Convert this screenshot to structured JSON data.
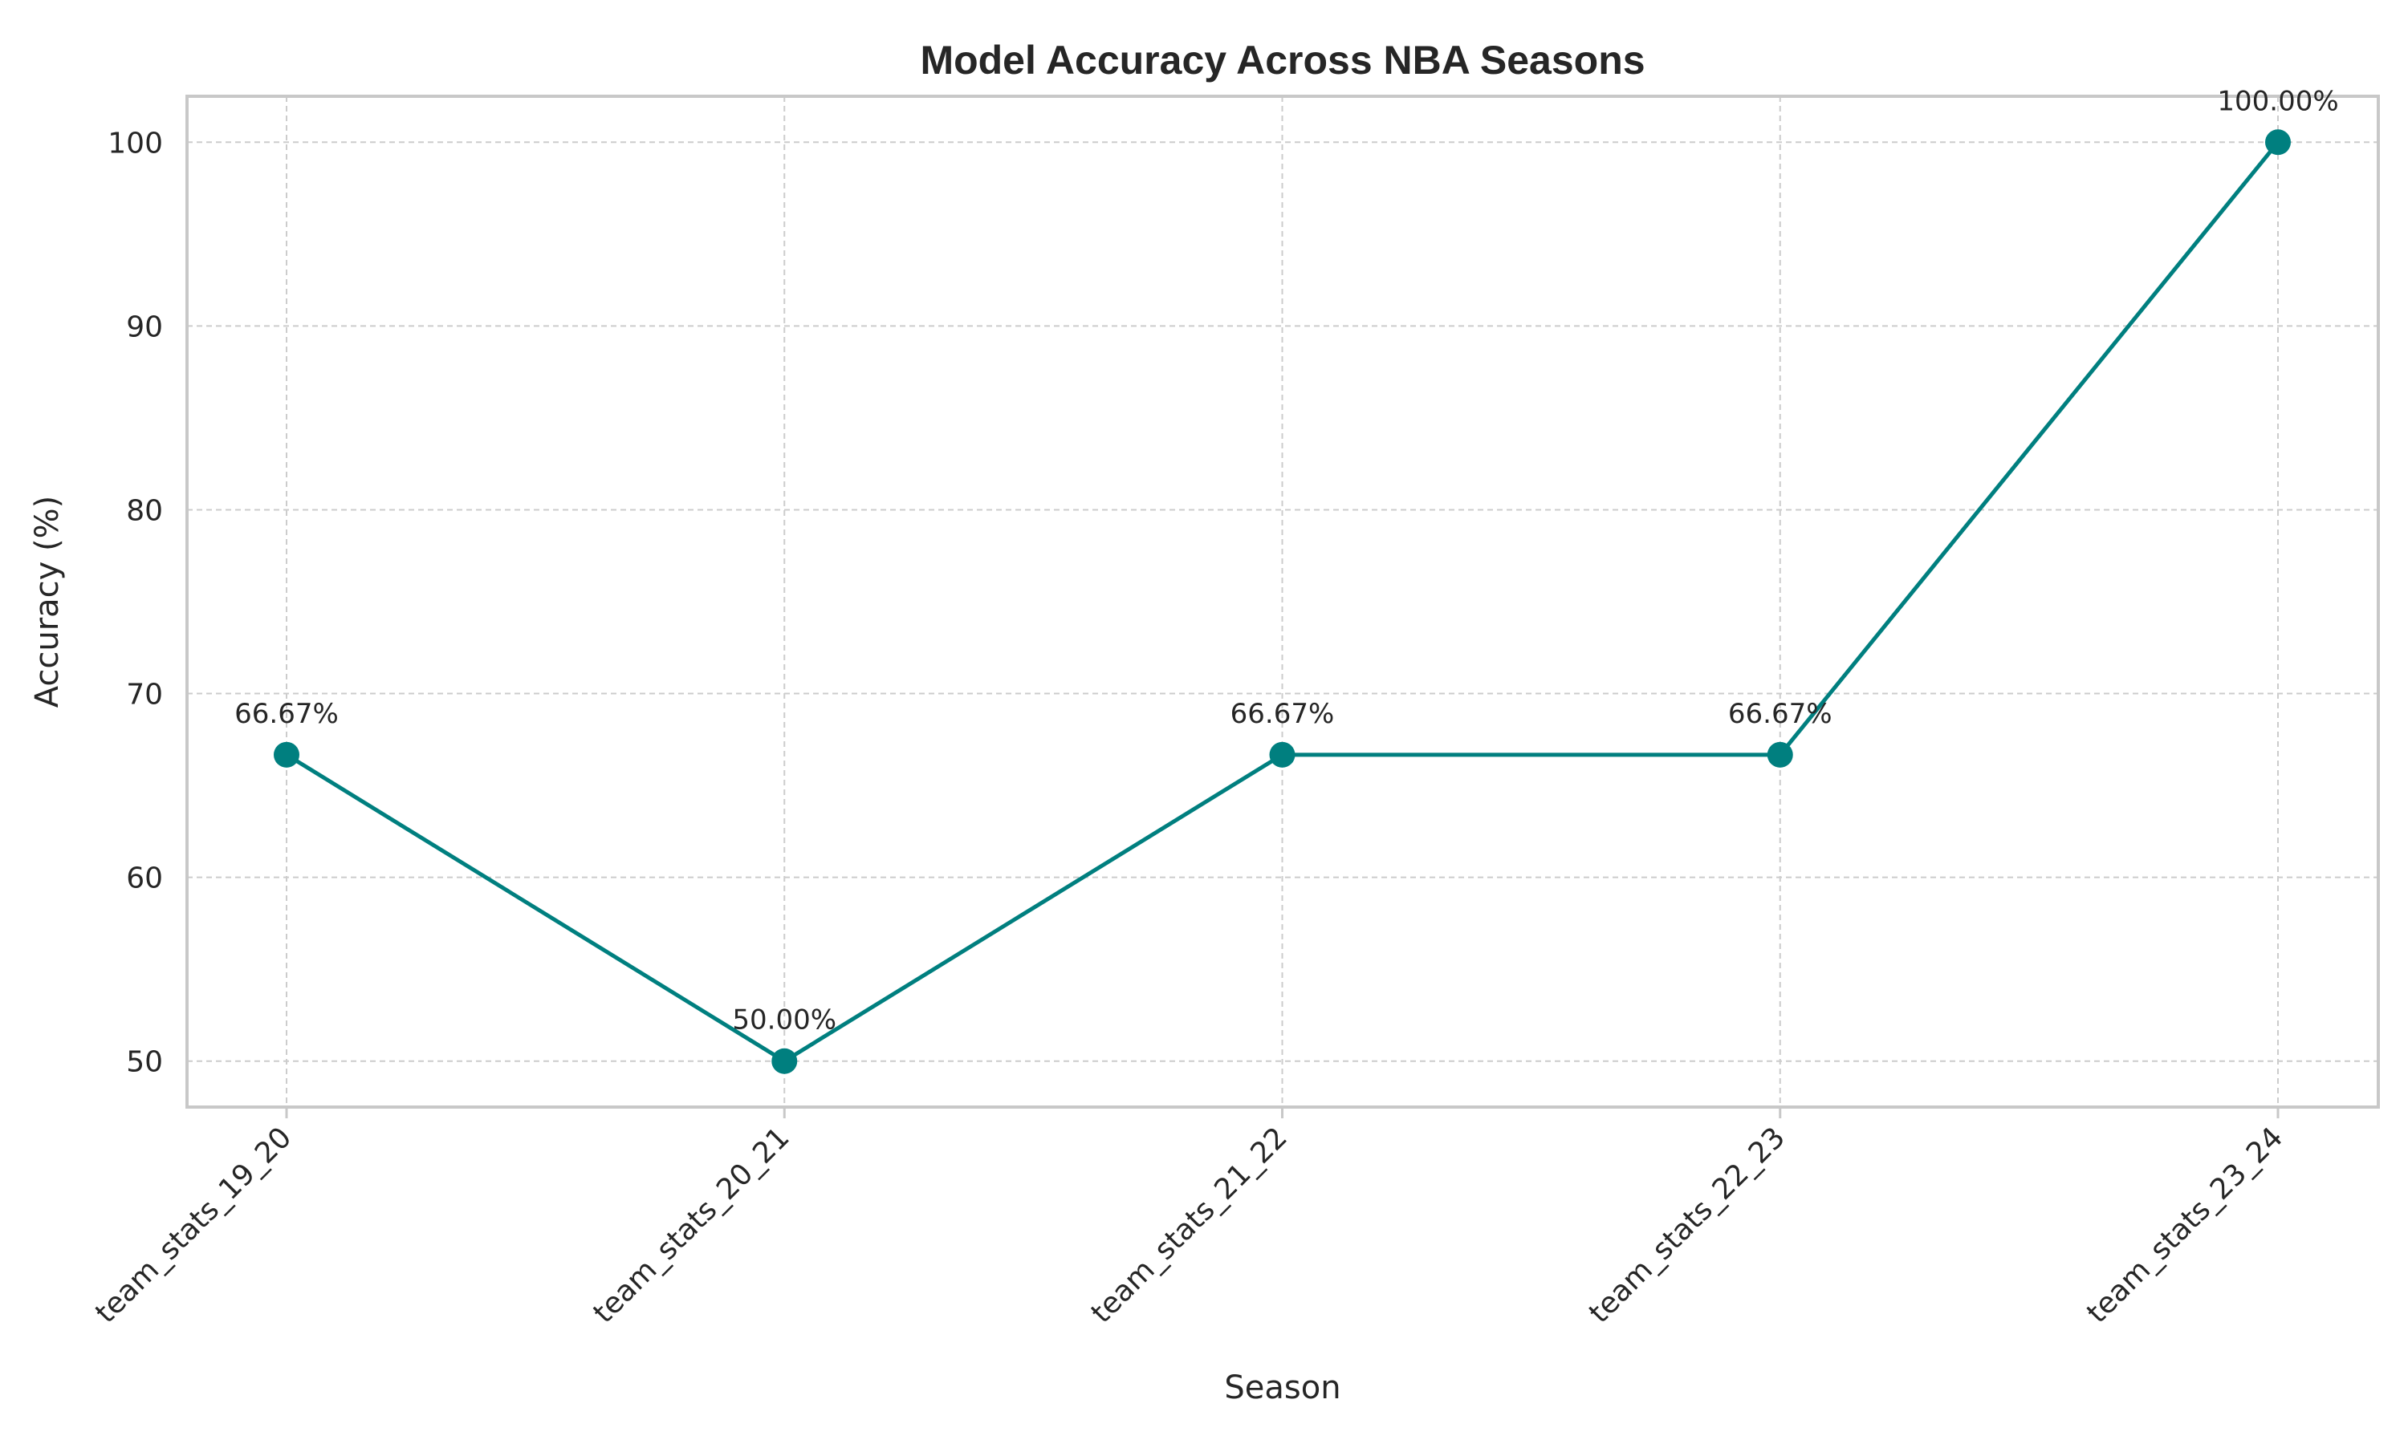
{
  "chart_data": {
    "type": "line",
    "title": "Model Accuracy Across NBA Seasons",
    "xlabel": "Season",
    "ylabel": "Accuracy (%)",
    "categories": [
      "team_stats_19_20",
      "team_stats_20_21",
      "team_stats_21_22",
      "team_stats_22_23",
      "team_stats_23_24"
    ],
    "series": [
      {
        "values": [
          66.67,
          50.0,
          66.67,
          66.67,
          100.0
        ]
      }
    ],
    "data_labels": [
      "66.67%",
      "50.00%",
      "66.67%",
      "66.67%",
      "100.00%"
    ],
    "yticks": [
      50,
      60,
      70,
      80,
      90,
      100
    ],
    "ylim": [
      47.5,
      102.5
    ],
    "grid": true,
    "line_color": "#007f7f",
    "marker": "circle"
  }
}
